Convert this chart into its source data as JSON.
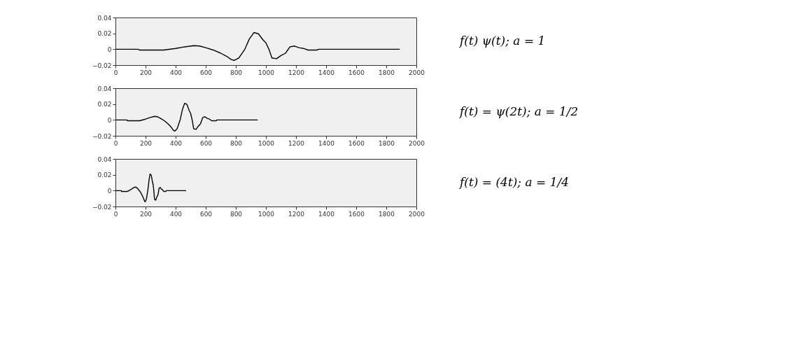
{
  "chart_data": [
    {
      "type": "line",
      "annotations": [
        "f(t) ψ(t);  a = 1"
      ],
      "xlim": [
        0,
        2000
      ],
      "ylim": [
        -0.02,
        0.04
      ],
      "xticks": [
        0,
        200,
        400,
        600,
        800,
        1000,
        1200,
        1400,
        1600,
        1800,
        2000
      ],
      "yticks": [
        -0.02,
        0,
        0.02,
        0.04
      ],
      "grid": false,
      "legend": false,
      "marker": "none",
      "line_style": "solid",
      "series": [
        {
          "color": "#000000",
          "x": [
            0,
            150,
            160,
            320,
            400,
            460,
            520,
            560,
            600,
            650,
            700,
            740,
            770,
            790,
            820,
            860,
            890,
            920,
            950,
            980,
            1000,
            1020,
            1040,
            1070,
            1100,
            1130,
            1160,
            1190,
            1220,
            1250,
            1280,
            1340,
            1350,
            1890
          ],
          "values": [
            0,
            0,
            -0.001,
            -0.001,
            0.001,
            0.003,
            0.0045,
            0.004,
            0.002,
            -0.001,
            -0.005,
            -0.009,
            -0.013,
            -0.014,
            -0.011,
            0.0,
            0.013,
            0.021,
            0.0195,
            0.012,
            0.008,
            0.0,
            -0.011,
            -0.012,
            -0.008,
            -0.005,
            0.003,
            0.004,
            0.002,
            0.001,
            -0.001,
            -0.001,
            0,
            0
          ]
        }
      ]
    },
    {
      "type": "line",
      "annotations": [
        "f(t) = ψ(2t); a = 1/2"
      ],
      "xlim": [
        0,
        2000
      ],
      "ylim": [
        -0.02,
        0.04
      ],
      "xticks": [
        0,
        200,
        400,
        600,
        800,
        1000,
        1200,
        1400,
        1600,
        1800,
        2000
      ],
      "yticks": [
        -0.02,
        0,
        0.02,
        0.04
      ],
      "grid": false,
      "legend": false,
      "marker": "none",
      "line_style": "solid",
      "series": [
        {
          "color": "#000000",
          "x": [
            0,
            75,
            80,
            160,
            200,
            230,
            260,
            280,
            300,
            325,
            350,
            370,
            385,
            395,
            410,
            430,
            445,
            460,
            475,
            490,
            500,
            510,
            520,
            535,
            550,
            565,
            580,
            595,
            610,
            625,
            640,
            670,
            675,
            945
          ],
          "values": [
            0,
            0,
            -0.001,
            -0.001,
            0.001,
            0.003,
            0.0045,
            0.004,
            0.002,
            -0.001,
            -0.005,
            -0.009,
            -0.013,
            -0.014,
            -0.011,
            0.0,
            0.013,
            0.021,
            0.0195,
            0.012,
            0.008,
            0.0,
            -0.011,
            -0.012,
            -0.008,
            -0.005,
            0.003,
            0.004,
            0.002,
            0.001,
            -0.001,
            -0.001,
            0,
            0
          ]
        }
      ]
    },
    {
      "type": "line",
      "annotations": [
        "f(t) = (4t);  a = 1/4"
      ],
      "xlim": [
        0,
        2000
      ],
      "ylim": [
        -0.02,
        0.04
      ],
      "xticks": [
        0,
        200,
        400,
        600,
        800,
        1000,
        1200,
        1400,
        1600,
        1800,
        2000
      ],
      "yticks": [
        -0.02,
        0,
        0.02,
        0.04
      ],
      "grid": false,
      "legend": false,
      "marker": "none",
      "line_style": "solid",
      "series": [
        {
          "color": "#000000",
          "x": [
            0,
            38,
            40,
            80,
            100,
            115,
            130,
            140,
            150,
            163,
            175,
            185,
            193,
            198,
            205,
            215,
            223,
            230,
            238,
            245,
            250,
            255,
            260,
            268,
            275,
            283,
            290,
            298,
            305,
            313,
            320,
            335,
            338,
            470
          ],
          "values": [
            0,
            0,
            -0.001,
            -0.001,
            0.001,
            0.003,
            0.0045,
            0.004,
            0.002,
            -0.001,
            -0.005,
            -0.009,
            -0.013,
            -0.014,
            -0.011,
            0.0,
            0.013,
            0.021,
            0.0195,
            0.012,
            0.008,
            0.0,
            -0.011,
            -0.012,
            -0.008,
            -0.005,
            0.003,
            0.004,
            0.002,
            0.001,
            -0.001,
            -0.001,
            0,
            0
          ]
        }
      ]
    }
  ]
}
